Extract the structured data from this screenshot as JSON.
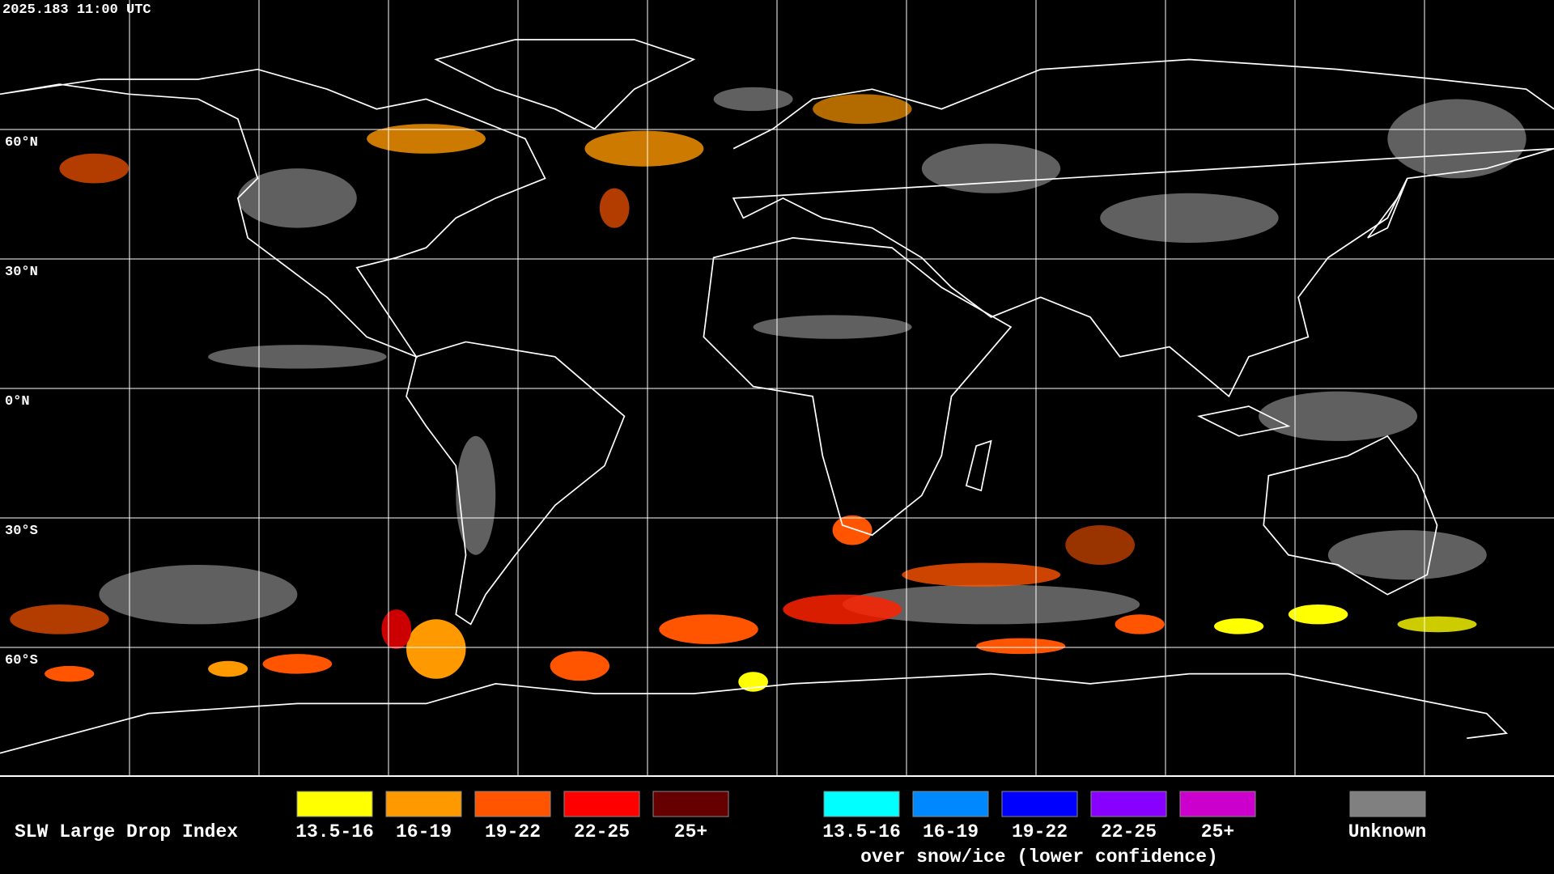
{
  "header": {
    "timestamp": "2025.183 11:00 UTC"
  },
  "latitude_labels": [
    "60°N",
    "30°N",
    "0°N",
    "30°S",
    "60°S"
  ],
  "legend": {
    "title": "SLW Large Drop Index",
    "items": [
      {
        "label": "13.5-16",
        "color": "#ffff00"
      },
      {
        "label": "16-19",
        "color": "#ff9900"
      },
      {
        "label": "19-22",
        "color": "#ff5500"
      },
      {
        "label": "22-25",
        "color": "#ff0000"
      },
      {
        "label": "25+",
        "color": "#660000"
      }
    ],
    "snow_items": [
      {
        "label": "13.5-16",
        "color": "#00ffff"
      },
      {
        "label": "16-19",
        "color": "#0088ff"
      },
      {
        "label": "19-22",
        "color": "#0000ff"
      },
      {
        "label": "22-25",
        "color": "#8800ff"
      },
      {
        "label": "25+",
        "color": "#cc00cc"
      }
    ],
    "snow_caption": "over snow/ice (lower confidence)",
    "unknown": {
      "label": "Unknown",
      "color": "#808080"
    }
  }
}
